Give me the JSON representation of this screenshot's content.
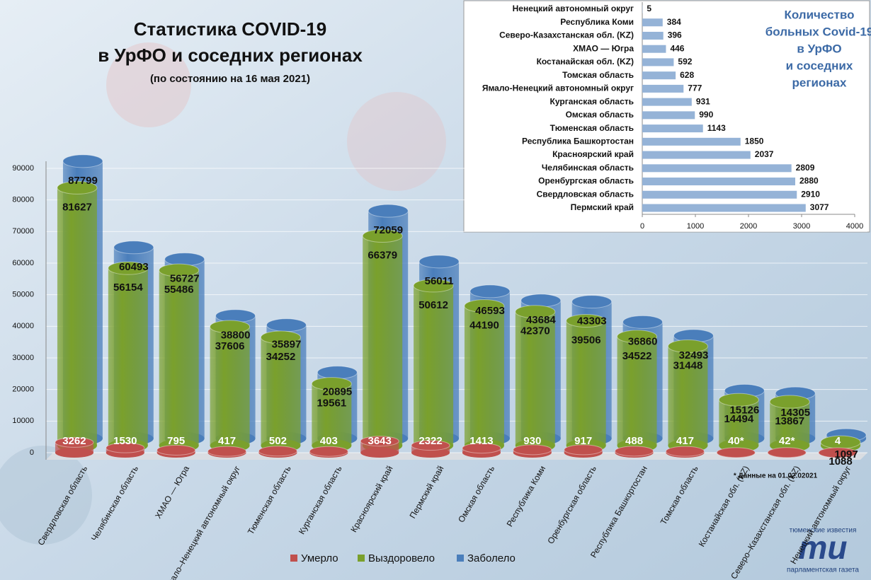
{
  "chart_data": [
    {
      "type": "bar",
      "title": [
        "Статистика COVID-19",
        "в УрФО и соседних регионах"
      ],
      "subtitle": "(по состоянию на 16 мая 2021)",
      "note": "* Данные на 01.02.02021",
      "categories": [
        "Свердловская область",
        "Челябинская область",
        "ХМАО — Югра",
        "Ямало–Ненецкий автономный округ",
        "Тюменская область",
        "Курганская область",
        "Красноярский край",
        "Пермский край",
        "Омская область",
        "Республика Коми",
        "Оренбургская область",
        "Республика Башкортостан",
        "Томская область",
        "Костанайская обл. (KZ)",
        "Северо–Казахстанская обл. (KZ)",
        "Ненецкий автономный округ"
      ],
      "series": [
        {
          "name": "Умерло",
          "color": "#c0504d",
          "values": [
            3262,
            1530,
            795,
            417,
            502,
            403,
            3643,
            2322,
            1413,
            930,
            917,
            488,
            417,
            40,
            42,
            4
          ],
          "value_labels": [
            "3262",
            "1530",
            "795",
            "417",
            "502",
            "403",
            "3643",
            "2322",
            "1413",
            "930",
            "917",
            "488",
            "417",
            "40*",
            "42*",
            "4"
          ]
        },
        {
          "name": "Выздоровело",
          "color": "#7aa02c",
          "values": [
            81627,
            56154,
            55486,
            37606,
            34252,
            19561,
            66379,
            50612,
            44190,
            42370,
            39506,
            34522,
            31448,
            14494,
            13867,
            1088
          ]
        },
        {
          "name": "Заболело",
          "color": "#4a7ebb",
          "values": [
            87799,
            60493,
            56727,
            38800,
            35897,
            20895,
            72059,
            56011,
            46593,
            43684,
            43303,
            36860,
            32493,
            15126,
            14305,
            1097
          ]
        }
      ],
      "ylim": [
        0,
        90000
      ],
      "yticks": [
        0,
        10000,
        20000,
        30000,
        40000,
        50000,
        60000,
        70000,
        80000,
        90000
      ],
      "grid": true,
      "legend": "bottom"
    },
    {
      "type": "hbar",
      "title": [
        "Количество",
        "больных Covid-19",
        "в УрФО",
        "и соседних",
        "регионах"
      ],
      "categories": [
        "Ненецкий автономный округ",
        "Республика Коми",
        "Северо-Казахстанская обл. (KZ)",
        "ХМАО — Югра",
        "Костанайская  обл. (KZ)",
        "Томская область",
        "Ямало-Ненецкий автономный округ",
        "Курганская  область",
        "Омская область",
        "Тюменская область",
        "Республика Башкортостан",
        "Красноярский край",
        "Челябинская область",
        "Оренбургская область",
        "Свердловская область",
        "Пермский край"
      ],
      "values": [
        5,
        384,
        396,
        446,
        592,
        628,
        777,
        931,
        990,
        1143,
        1850,
        2037,
        2809,
        2880,
        2910,
        3077
      ],
      "color": "#95b3d7",
      "xlim": [
        0,
        4000
      ],
      "xticks": [
        0,
        1000,
        2000,
        3000,
        4000
      ],
      "grid": false
    }
  ],
  "logo": {
    "top": "тюменские известия",
    "mark": "ти",
    "bottom": "парламентская газета"
  }
}
